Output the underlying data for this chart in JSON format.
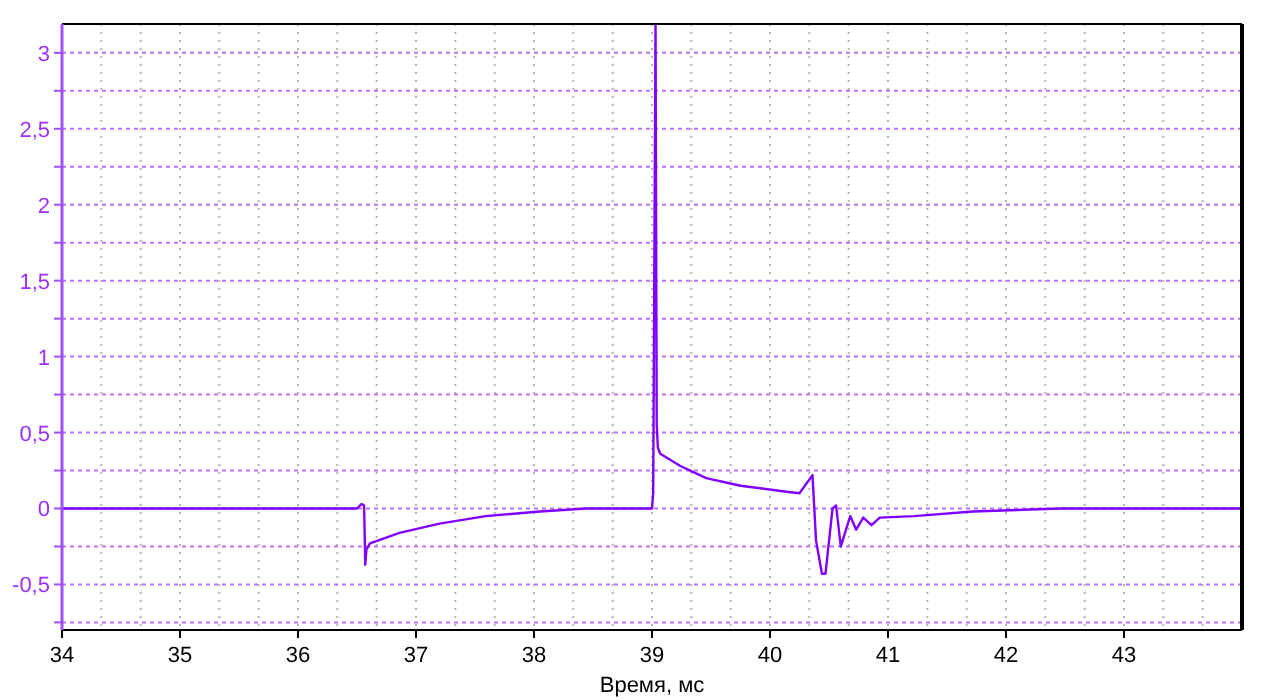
{
  "chart_data": {
    "type": "line",
    "xlabel": "Время, мс",
    "xlim": [
      34,
      44
    ],
    "xticks": [
      34,
      {
        "value": 34.333,
        "label": null
      },
      {
        "value": 34.667,
        "label": null
      },
      35,
      {
        "value": 35.333,
        "label": null
      },
      {
        "value": 35.667,
        "label": null
      },
      36,
      {
        "value": 36.333,
        "label": null
      },
      {
        "value": 36.667,
        "label": null
      },
      37,
      {
        "value": 37.333,
        "label": null
      },
      {
        "value": 37.667,
        "label": null
      },
      38,
      {
        "value": 38.333,
        "label": null
      },
      {
        "value": 38.667,
        "label": null
      },
      39,
      {
        "value": 39.333,
        "label": null
      },
      {
        "value": 39.667,
        "label": null
      },
      40,
      {
        "value": 40.333,
        "label": null
      },
      {
        "value": 40.667,
        "label": null
      },
      41,
      {
        "value": 41.333,
        "label": null
      },
      {
        "value": 41.667,
        "label": null
      },
      42,
      {
        "value": 42.333,
        "label": null
      },
      {
        "value": 42.667,
        "label": null
      },
      43,
      {
        "value": 43.333,
        "label": null
      },
      {
        "value": 43.667,
        "label": null
      }
    ],
    "ylim": [
      -0.8,
      3.19
    ],
    "yticks": [
      {
        "value": -0.75,
        "label": null
      },
      {
        "value": -0.5,
        "label": "-0,5"
      },
      {
        "value": -0.25,
        "label": null
      },
      0,
      {
        "value": 0.25,
        "label": null
      },
      {
        "value": 0.5,
        "label": "0,5"
      },
      {
        "value": 0.75,
        "label": null
      },
      1,
      {
        "value": 1.25,
        "label": null
      },
      {
        "value": 1.5,
        "label": "1,5"
      },
      {
        "value": 1.75,
        "label": null
      },
      2,
      {
        "value": 2.25,
        "label": null
      },
      {
        "value": 2.5,
        "label": "2,5"
      },
      {
        "value": 2.75,
        "label": null
      },
      3
    ],
    "grid": true,
    "marker": "none",
    "line_style": "solid",
    "series": [
      {
        "color": "#8000ff",
        "x": [
          34,
          35,
          36,
          36.5,
          36.54,
          36.56,
          36.57,
          36.58,
          36.61,
          36.86,
          37.2,
          37.59,
          38.05,
          38.44,
          39.0,
          39.01,
          39.03,
          39.04,
          39.05,
          39.07,
          39.24,
          39.46,
          39.75,
          40.14,
          40.25,
          40.36,
          40.39,
          40.44,
          40.47,
          40.53,
          40.56,
          40.6,
          40.68,
          40.73,
          40.79,
          40.86,
          40.93,
          41.22,
          41.72,
          42.46,
          43,
          44
        ],
        "values": [
          0,
          0,
          0,
          0,
          0.03,
          0.02,
          -0.37,
          -0.27,
          -0.23,
          -0.16,
          -0.1,
          -0.05,
          -0.02,
          0,
          0,
          0.1,
          3.19,
          0.55,
          0.4,
          0.36,
          0.28,
          0.2,
          0.15,
          0.11,
          0.1,
          0.22,
          -0.21,
          -0.43,
          -0.43,
          0,
          0.02,
          -0.25,
          -0.05,
          -0.14,
          -0.06,
          -0.11,
          -0.06,
          -0.05,
          -0.02,
          0,
          0,
          0
        ]
      }
    ]
  }
}
